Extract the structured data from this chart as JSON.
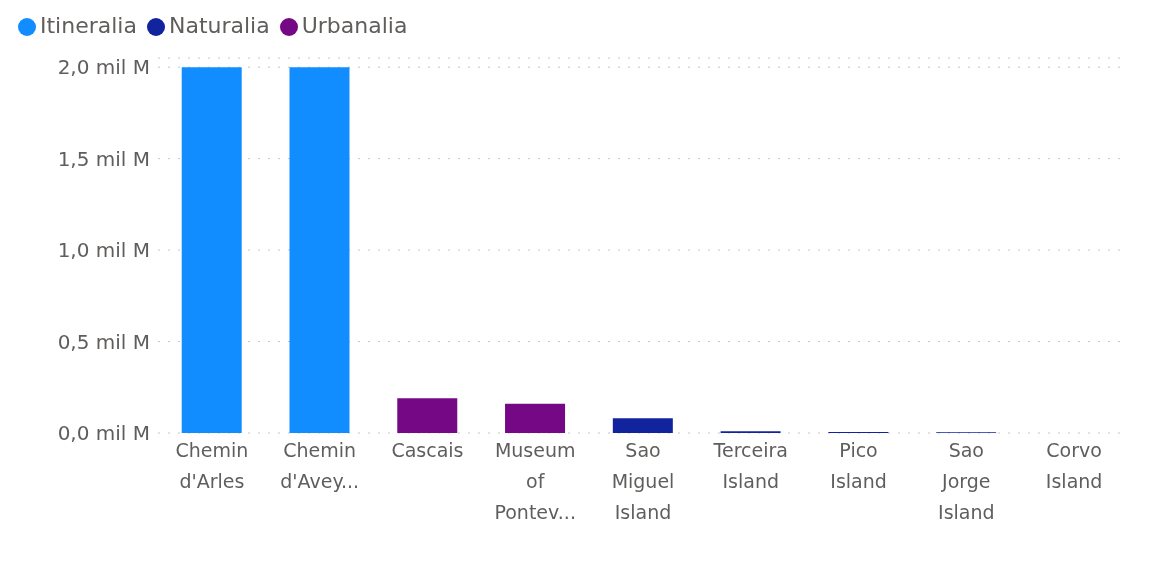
{
  "chart_data": {
    "type": "bar",
    "stacked": true,
    "categories": [
      "Chemin d'Arles",
      "Chemin d'Avey...",
      "Cascais",
      "Museum of Pontev...",
      "Sao Miguel Island",
      "Terceira Island",
      "Pico Island",
      "Sao Jorge Island",
      "Corvo Island"
    ],
    "series": [
      {
        "name": "Itineralia",
        "color": "#118dff",
        "values": [
          2.0,
          2.0,
          null,
          null,
          null,
          null,
          null,
          null,
          null
        ]
      },
      {
        "name": "Naturalia",
        "color": "#12239e",
        "values": [
          null,
          null,
          null,
          null,
          0.08,
          0.01,
          0.006,
          0.004,
          0
        ]
      },
      {
        "name": "Urbanalia",
        "color": "#750985",
        "values": [
          null,
          null,
          0.19,
          0.16,
          null,
          null,
          null,
          null,
          null
        ]
      }
    ],
    "ylim": [
      0,
      2.05
    ],
    "yticks": [
      {
        "value": 0,
        "label": "0,0 mil M"
      },
      {
        "value": 0.5,
        "label": "0,5 mil M"
      },
      {
        "value": 1,
        "label": "1,0 mil M"
      },
      {
        "value": 1.5,
        "label": "1,5 mil M"
      },
      {
        "value": 2,
        "label": "2,0 mil M"
      }
    ],
    "grid": "y",
    "legend": "top left"
  }
}
